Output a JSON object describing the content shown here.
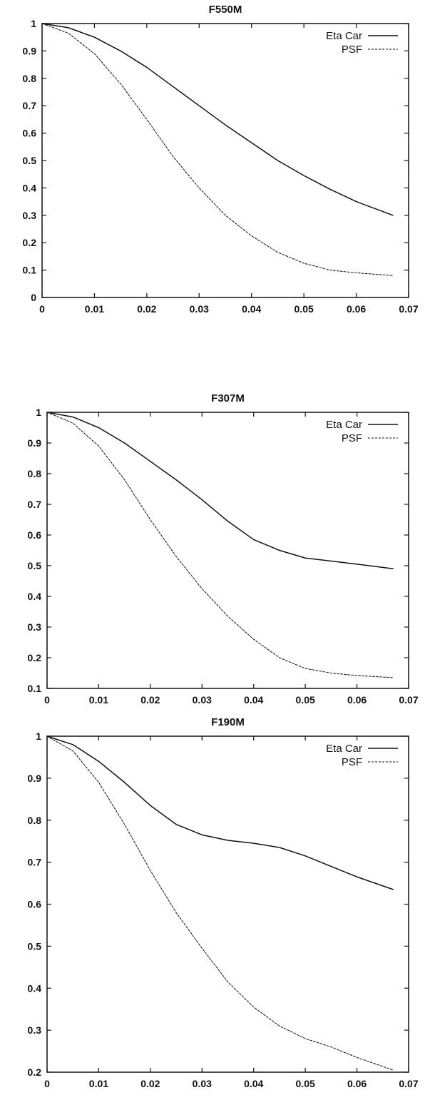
{
  "chart_data": [
    {
      "type": "line",
      "title": "F550M",
      "xlabel": "",
      "ylabel": "",
      "xlim": [
        0,
        0.07
      ],
      "ylim": [
        0,
        1
      ],
      "xticks": [
        "0",
        "0.01",
        "0.02",
        "0.03",
        "0.04",
        "0.05",
        "0.06",
        "0.07"
      ],
      "yticks": [
        "0",
        "0.1",
        "0.2",
        "0.3",
        "0.4",
        "0.5",
        "0.6",
        "0.7",
        "0.8",
        "0.9",
        "1"
      ],
      "grid": false,
      "legend": "top-right",
      "series": [
        {
          "name": "Eta Car",
          "style": "solid",
          "x": [
            0,
            0.005,
            0.01,
            0.015,
            0.02,
            0.025,
            0.03,
            0.035,
            0.04,
            0.045,
            0.05,
            0.055,
            0.06,
            0.067
          ],
          "y": [
            1.0,
            0.985,
            0.95,
            0.9,
            0.84,
            0.77,
            0.7,
            0.63,
            0.565,
            0.5,
            0.445,
            0.395,
            0.35,
            0.3
          ]
        },
        {
          "name": "PSF",
          "style": "dashed",
          "x": [
            0,
            0.005,
            0.01,
            0.015,
            0.02,
            0.025,
            0.03,
            0.035,
            0.04,
            0.045,
            0.05,
            0.055,
            0.06,
            0.067
          ],
          "y": [
            1.0,
            0.965,
            0.89,
            0.78,
            0.65,
            0.515,
            0.4,
            0.3,
            0.225,
            0.165,
            0.125,
            0.1,
            0.09,
            0.08
          ]
        }
      ]
    },
    {
      "type": "line",
      "title": "F307M",
      "xlabel": "",
      "ylabel": "",
      "xlim": [
        0,
        0.07
      ],
      "ylim": [
        0.1,
        1
      ],
      "xticks": [
        "0",
        "0.01",
        "0.02",
        "0.03",
        "0.04",
        "0.05",
        "0.06",
        "0.07"
      ],
      "yticks": [
        "0.1",
        "0.2",
        "0.3",
        "0.4",
        "0.5",
        "0.6",
        "0.7",
        "0.8",
        "0.9",
        "1"
      ],
      "grid": false,
      "legend": "top-right",
      "series": [
        {
          "name": "Eta Car",
          "style": "solid",
          "x": [
            0,
            0.005,
            0.01,
            0.015,
            0.02,
            0.025,
            0.03,
            0.035,
            0.04,
            0.045,
            0.05,
            0.055,
            0.06,
            0.067
          ],
          "y": [
            1.0,
            0.985,
            0.95,
            0.9,
            0.84,
            0.78,
            0.715,
            0.645,
            0.585,
            0.55,
            0.525,
            0.515,
            0.505,
            0.49
          ]
        },
        {
          "name": "PSF",
          "style": "dashed",
          "x": [
            0,
            0.005,
            0.01,
            0.015,
            0.02,
            0.025,
            0.03,
            0.035,
            0.04,
            0.045,
            0.05,
            0.055,
            0.06,
            0.067
          ],
          "y": [
            1.0,
            0.965,
            0.89,
            0.78,
            0.65,
            0.53,
            0.425,
            0.335,
            0.26,
            0.2,
            0.165,
            0.15,
            0.142,
            0.135
          ]
        }
      ]
    },
    {
      "type": "line",
      "title": "F190M",
      "xlabel": "",
      "ylabel": "",
      "xlim": [
        0,
        0.07
      ],
      "ylim": [
        0.2,
        1
      ],
      "xticks": [
        "0",
        "0.01",
        "0.02",
        "0.03",
        "0.04",
        "0.05",
        "0.06",
        "0.07"
      ],
      "yticks": [
        "0.2",
        "0.3",
        "0.4",
        "0.5",
        "0.6",
        "0.7",
        "0.8",
        "0.9",
        "1"
      ],
      "grid": false,
      "legend": "top-right",
      "series": [
        {
          "name": "Eta Car",
          "style": "solid",
          "x": [
            0,
            0.005,
            0.01,
            0.015,
            0.02,
            0.025,
            0.03,
            0.035,
            0.04,
            0.045,
            0.05,
            0.055,
            0.06,
            0.067
          ],
          "y": [
            1.0,
            0.98,
            0.94,
            0.89,
            0.835,
            0.79,
            0.765,
            0.752,
            0.745,
            0.735,
            0.715,
            0.69,
            0.665,
            0.635
          ]
        },
        {
          "name": "PSF",
          "style": "dashed",
          "x": [
            0,
            0.005,
            0.01,
            0.015,
            0.02,
            0.025,
            0.03,
            0.035,
            0.04,
            0.045,
            0.05,
            0.055,
            0.06,
            0.067
          ],
          "y": [
            1.0,
            0.965,
            0.89,
            0.79,
            0.68,
            0.58,
            0.495,
            0.415,
            0.355,
            0.31,
            0.28,
            0.26,
            0.235,
            0.205
          ]
        }
      ]
    }
  ]
}
